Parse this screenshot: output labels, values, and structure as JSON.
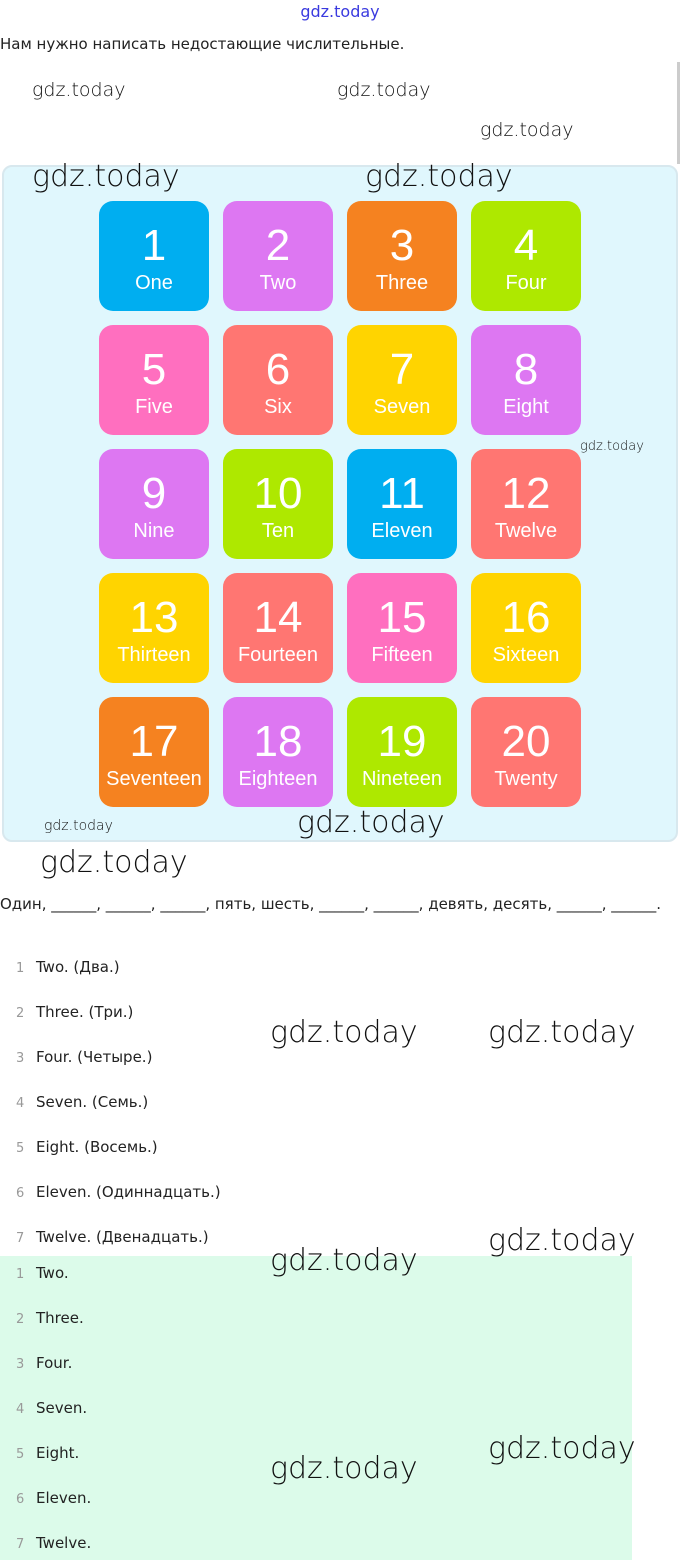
{
  "watermark": "gdz.today",
  "intro": "Нам нужно написать недостающие числительные.",
  "tiles": [
    {
      "n": "1",
      "w": "One",
      "color": "#00aef0"
    },
    {
      "n": "2",
      "w": "Two",
      "color": "#dd77f2"
    },
    {
      "n": "3",
      "w": "Three",
      "color": "#f58220"
    },
    {
      "n": "4",
      "w": "Four",
      "color": "#aee800"
    },
    {
      "n": "5",
      "w": "Five",
      "color": "#ff6fbf"
    },
    {
      "n": "6",
      "w": "Six",
      "color": "#ff7672"
    },
    {
      "n": "7",
      "w": "Seven",
      "color": "#ffd400"
    },
    {
      "n": "8",
      "w": "Eight",
      "color": "#dd77f2"
    },
    {
      "n": "9",
      "w": "Nine",
      "color": "#dd77f2"
    },
    {
      "n": "10",
      "w": "Ten",
      "color": "#aee800"
    },
    {
      "n": "11",
      "w": "Eleven",
      "color": "#00aef0"
    },
    {
      "n": "12",
      "w": "Twelve",
      "color": "#ff7672"
    },
    {
      "n": "13",
      "w": "Thirteen",
      "color": "#ffd400"
    },
    {
      "n": "14",
      "w": "Fourteen",
      "color": "#ff7672"
    },
    {
      "n": "15",
      "w": "Fifteen",
      "color": "#ff6fbf"
    },
    {
      "n": "16",
      "w": "Sixteen",
      "color": "#ffd400"
    },
    {
      "n": "17",
      "w": "Seventeen",
      "color": "#f58220"
    },
    {
      "n": "18",
      "w": "Eighteen",
      "color": "#dd77f2"
    },
    {
      "n": "19",
      "w": "Nineteen",
      "color": "#aee800"
    },
    {
      "n": "20",
      "w": "Twenty",
      "color": "#ff7672"
    }
  ],
  "question": "Один, ______, ______, ______, пять, шесть, ______, ______, девять, десять, ______, ______.",
  "answers_full": [
    "Two. (Два.)",
    "Three. (Три.)",
    "Four. (Четыре.)",
    "Seven. (Семь.)",
    "Eight. (Восемь.)",
    "Eleven. (Одиннадцать.)",
    "Twelve. (Двенадцать.)"
  ],
  "answers_short": [
    "Two.",
    "Three.",
    "Four.",
    "Seven.",
    "Eight.",
    "Eleven.",
    "Twelve."
  ],
  "numbers": [
    "1",
    "2",
    "3",
    "4",
    "5",
    "6",
    "7"
  ]
}
